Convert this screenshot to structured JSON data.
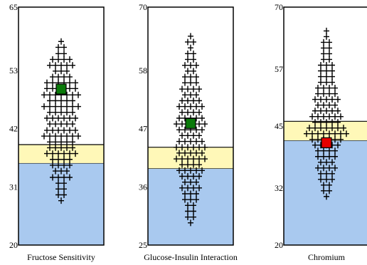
{
  "chart_data": [
    {
      "type": "scatter",
      "title": "",
      "xlabel": "Fructose Sensitivity",
      "ylabel": "",
      "ylim": [
        20,
        65
      ],
      "yticks": [
        20,
        31,
        42,
        53,
        65
      ],
      "bands": [
        {
          "name": "low",
          "from": 20,
          "to": 35.5,
          "color": "#a9c9ef"
        },
        {
          "name": "borderline",
          "from": 35.5,
          "to": 39,
          "color": "#fff8b8"
        }
      ],
      "marker": {
        "value": 49.5,
        "color": "#0a7a0a"
      },
      "distribution": [
        {
          "y": 58.5,
          "count": 1
        },
        {
          "y": 57.4,
          "count": 2
        },
        {
          "y": 56.2,
          "count": 2
        },
        {
          "y": 55.1,
          "count": 4
        },
        {
          "y": 54.0,
          "count": 5
        },
        {
          "y": 52.9,
          "count": 3
        },
        {
          "y": 51.8,
          "count": 4
        },
        {
          "y": 50.7,
          "count": 6
        },
        {
          "y": 49.6,
          "count": 6
        },
        {
          "y": 48.4,
          "count": 7
        },
        {
          "y": 47.3,
          "count": 5
        },
        {
          "y": 46.2,
          "count": 7
        },
        {
          "y": 45.1,
          "count": 5
        },
        {
          "y": 44.0,
          "count": 6
        },
        {
          "y": 42.9,
          "count": 5
        },
        {
          "y": 41.7,
          "count": 6
        },
        {
          "y": 40.6,
          "count": 7
        },
        {
          "y": 39.5,
          "count": 5
        },
        {
          "y": 38.4,
          "count": 5
        },
        {
          "y": 37.3,
          "count": 6
        },
        {
          "y": 36.2,
          "count": 4
        },
        {
          "y": 35.1,
          "count": 4
        },
        {
          "y": 34.0,
          "count": 3
        },
        {
          "y": 32.8,
          "count": 4
        },
        {
          "y": 31.7,
          "count": 2
        },
        {
          "y": 30.6,
          "count": 2
        },
        {
          "y": 29.5,
          "count": 2
        },
        {
          "y": 28.4,
          "count": 1
        }
      ]
    },
    {
      "type": "scatter",
      "title": "",
      "xlabel": "Glucose-Insulin Interaction",
      "ylabel": "",
      "ylim": [
        25,
        70
      ],
      "yticks": [
        25,
        36,
        47,
        58,
        70
      ],
      "bands": [
        {
          "name": "low",
          "from": 25,
          "to": 39.5,
          "color": "#a9c9ef"
        },
        {
          "name": "borderline",
          "from": 39.5,
          "to": 43.5,
          "color": "#fff8b8"
        }
      ],
      "marker": {
        "value": 48,
        "color": "#0a7a0a"
      },
      "distribution": [
        {
          "y": 64.5,
          "count": 1
        },
        {
          "y": 63.4,
          "count": 2
        },
        {
          "y": 62.3,
          "count": 1
        },
        {
          "y": 61.2,
          "count": 2
        },
        {
          "y": 60.1,
          "count": 2
        },
        {
          "y": 59.0,
          "count": 3
        },
        {
          "y": 57.9,
          "count": 2
        },
        {
          "y": 56.8,
          "count": 3
        },
        {
          "y": 55.7,
          "count": 3
        },
        {
          "y": 54.5,
          "count": 4
        },
        {
          "y": 53.4,
          "count": 3
        },
        {
          "y": 52.3,
          "count": 4
        },
        {
          "y": 51.2,
          "count": 5
        },
        {
          "y": 50.1,
          "count": 4
        },
        {
          "y": 49.0,
          "count": 5
        },
        {
          "y": 47.9,
          "count": 6
        },
        {
          "y": 46.8,
          "count": 5
        },
        {
          "y": 45.7,
          "count": 4
        },
        {
          "y": 44.6,
          "count": 5
        },
        {
          "y": 43.5,
          "count": 6
        },
        {
          "y": 42.4,
          "count": 5
        },
        {
          "y": 41.3,
          "count": 6
        },
        {
          "y": 40.2,
          "count": 4
        },
        {
          "y": 39.1,
          "count": 5
        },
        {
          "y": 38.0,
          "count": 4
        },
        {
          "y": 36.9,
          "count": 3
        },
        {
          "y": 35.8,
          "count": 4
        },
        {
          "y": 34.7,
          "count": 3
        },
        {
          "y": 33.6,
          "count": 3
        },
        {
          "y": 32.5,
          "count": 2
        },
        {
          "y": 31.4,
          "count": 2
        },
        {
          "y": 30.3,
          "count": 2
        },
        {
          "y": 29.2,
          "count": 1
        }
      ]
    },
    {
      "type": "scatter",
      "title": "",
      "xlabel": "Chromium",
      "ylabel": "",
      "ylim": [
        20,
        70
      ],
      "yticks": [
        20,
        32,
        45,
        57,
        70
      ],
      "bands": [
        {
          "name": "low",
          "from": 20,
          "to": 42,
          "color": "#a9c9ef"
        },
        {
          "name": "borderline",
          "from": 42,
          "to": 46,
          "color": "#fff8b8"
        }
      ],
      "marker": {
        "value": 41.5,
        "color": "#e60000"
      },
      "distribution": [
        {
          "y": 65.0,
          "count": 1
        },
        {
          "y": 63.8,
          "count": 1
        },
        {
          "y": 62.6,
          "count": 2
        },
        {
          "y": 61.4,
          "count": 2
        },
        {
          "y": 60.2,
          "count": 2
        },
        {
          "y": 59.0,
          "count": 2
        },
        {
          "y": 57.8,
          "count": 3
        },
        {
          "y": 56.6,
          "count": 3
        },
        {
          "y": 55.4,
          "count": 3
        },
        {
          "y": 54.2,
          "count": 3
        },
        {
          "y": 53.0,
          "count": 4
        },
        {
          "y": 51.8,
          "count": 4
        },
        {
          "y": 50.6,
          "count": 5
        },
        {
          "y": 49.4,
          "count": 4
        },
        {
          "y": 48.2,
          "count": 5
        },
        {
          "y": 47.0,
          "count": 6
        },
        {
          "y": 45.8,
          "count": 5
        },
        {
          "y": 44.6,
          "count": 7
        },
        {
          "y": 43.4,
          "count": 8
        },
        {
          "y": 42.2,
          "count": 6
        },
        {
          "y": 41.0,
          "count": 5
        },
        {
          "y": 39.8,
          "count": 4
        },
        {
          "y": 38.6,
          "count": 4
        },
        {
          "y": 37.4,
          "count": 3
        },
        {
          "y": 36.2,
          "count": 4
        },
        {
          "y": 35.0,
          "count": 3
        },
        {
          "y": 33.8,
          "count": 3
        },
        {
          "y": 32.6,
          "count": 2
        },
        {
          "y": 31.4,
          "count": 2
        },
        {
          "y": 30.2,
          "count": 1
        }
      ]
    }
  ]
}
